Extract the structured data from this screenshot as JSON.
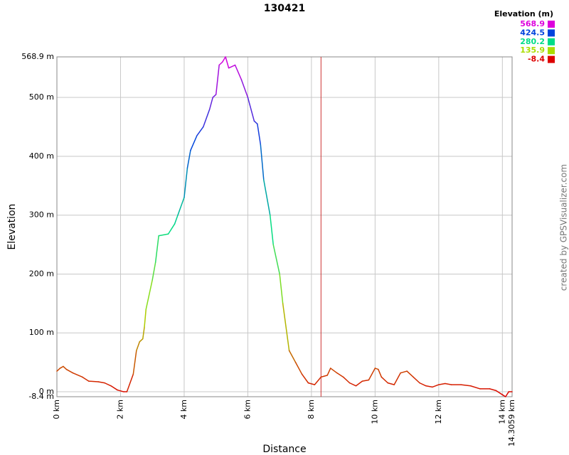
{
  "chart_data": {
    "type": "line",
    "title": "130421",
    "x_label": "Distance",
    "y_label": "Elevation",
    "watermark": "created by GPSVisualizer.com",
    "legend_title": "Elevation (m)",
    "color_scale": [
      {
        "value": 568.9,
        "color": "#dd00dd"
      },
      {
        "value": 424.5,
        "color": "#0044dd"
      },
      {
        "value": 280.2,
        "color": "#00dd88"
      },
      {
        "value": 135.9,
        "color": "#aadd00"
      },
      {
        "value": -8.4,
        "color": "#dd0000"
      }
    ],
    "xlim": [
      0,
      14.3059
    ],
    "ylim": [
      -8.4,
      568.9
    ],
    "xticks": [
      {
        "value": 0,
        "label": "0 km"
      },
      {
        "value": 2,
        "label": "2 km"
      },
      {
        "value": 4,
        "label": "4 km"
      },
      {
        "value": 6,
        "label": "6 km"
      },
      {
        "value": 8,
        "label": "8 km"
      },
      {
        "value": 10,
        "label": "10 km"
      },
      {
        "value": 12,
        "label": "12 km"
      },
      {
        "value": 14,
        "label": "14 km"
      },
      {
        "value": 14.3059,
        "label": "14.3059 km"
      }
    ],
    "yticks": [
      {
        "value": -8.4,
        "label": "-8.4 m"
      },
      {
        "value": 0,
        "label": "0 m"
      },
      {
        "value": 100,
        "label": "100 m"
      },
      {
        "value": 200,
        "label": "200 m"
      },
      {
        "value": 300,
        "label": "300 m"
      },
      {
        "value": 400,
        "label": "400 m"
      },
      {
        "value": 500,
        "label": "500 m"
      },
      {
        "value": 568.9,
        "label": "568.9 m"
      }
    ],
    "grid": true,
    "marker_x": 8.3,
    "marker_color": "#cc3333",
    "x": [
      0,
      0.1,
      0.2,
      0.3,
      0.5,
      0.8,
      1.0,
      1.3,
      1.5,
      1.7,
      1.9,
      2.1,
      2.2,
      2.4,
      2.5,
      2.6,
      2.7,
      2.75,
      2.8,
      3.0,
      3.1,
      3.2,
      3.5,
      3.7,
      3.8,
      4.0,
      4.1,
      4.2,
      4.4,
      4.6,
      4.8,
      4.9,
      5.0,
      5.1,
      5.2,
      5.3,
      5.4,
      5.6,
      5.8,
      6.0,
      6.2,
      6.3,
      6.4,
      6.5,
      6.7,
      6.8,
      7.0,
      7.1,
      7.3,
      7.5,
      7.7,
      7.9,
      8.1,
      8.3,
      8.5,
      8.6,
      8.8,
      9.0,
      9.2,
      9.4,
      9.6,
      9.8,
      10.0,
      10.1,
      10.2,
      10.4,
      10.6,
      10.8,
      11.0,
      11.2,
      11.4,
      11.6,
      11.8,
      12.0,
      12.2,
      12.4,
      12.7,
      13.0,
      13.3,
      13.6,
      13.8,
      14.0,
      14.1,
      14.2,
      14.3059
    ],
    "series": [
      {
        "name": "Elevation",
        "values": [
          35,
          40,
          43,
          38,
          32,
          25,
          18,
          17,
          15,
          10,
          3,
          0,
          0,
          30,
          70,
          85,
          90,
          110,
          140,
          190,
          220,
          265,
          268,
          285,
          300,
          330,
          380,
          410,
          435,
          450,
          480,
          500,
          505,
          555,
          560,
          568.9,
          550,
          555,
          530,
          500,
          460,
          455,
          420,
          360,
          300,
          250,
          200,
          150,
          70,
          50,
          30,
          15,
          12,
          25,
          28,
          40,
          32,
          25,
          15,
          10,
          18,
          20,
          40,
          38,
          25,
          15,
          12,
          32,
          35,
          25,
          15,
          10,
          8,
          12,
          14,
          12,
          12,
          10,
          5,
          5,
          2,
          -5,
          -8.4,
          0,
          0
        ]
      }
    ]
  }
}
